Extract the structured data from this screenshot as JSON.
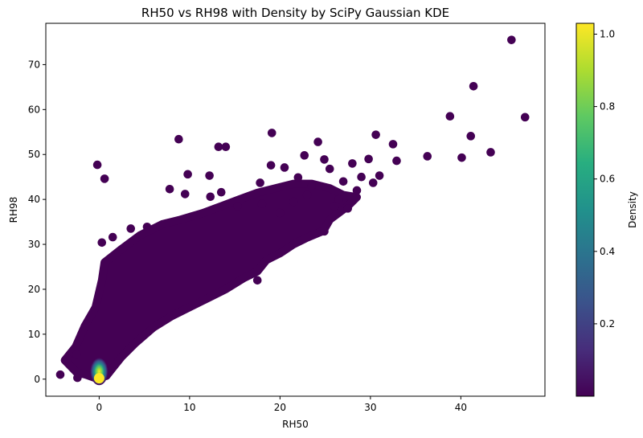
{
  "chart_data": {
    "type": "scatter",
    "title": "RH50 vs RH98 with Density by SciPy Gaussian KDE",
    "xlabel": "RH50",
    "ylabel": "RH98",
    "xlim": [
      -5.9,
      49.3
    ],
    "ylim": [
      -3.8,
      79.2
    ],
    "xticks": [
      0,
      10,
      20,
      30,
      40
    ],
    "yticks": [
      0,
      10,
      20,
      30,
      40,
      50,
      60,
      70
    ],
    "grid": false,
    "colormap": "viridis",
    "colorbar": {
      "label": "Density",
      "range": [
        0.0,
        1.03
      ],
      "ticks": [
        0.2,
        0.4,
        0.6,
        0.8,
        1.0
      ],
      "tick_labels": [
        "0.2",
        "0.4",
        "0.6",
        "0.8",
        "1.0"
      ]
    },
    "points_outliers": [
      [
        45.6,
        75.5
      ],
      [
        41.4,
        65.2
      ],
      [
        47.1,
        58.3
      ],
      [
        38.8,
        58.5
      ],
      [
        41.1,
        54.1
      ],
      [
        43.3,
        50.5
      ],
      [
        40.1,
        49.3
      ],
      [
        36.3,
        49.6
      ],
      [
        32.5,
        52.3
      ],
      [
        30.6,
        54.4
      ],
      [
        32.9,
        48.6
      ],
      [
        29.8,
        49.0
      ],
      [
        31.0,
        45.3
      ],
      [
        30.3,
        43.7
      ],
      [
        28.0,
        48.0
      ],
      [
        29.0,
        45.0
      ],
      [
        28.5,
        42.0
      ],
      [
        27.0,
        44.0
      ],
      [
        26.5,
        40.0
      ],
      [
        27.5,
        38.0
      ],
      [
        26.0,
        38.5
      ],
      [
        24.9,
        32.9
      ],
      [
        24.9,
        48.9
      ],
      [
        22.7,
        49.8
      ],
      [
        24.2,
        52.8
      ],
      [
        19.1,
        54.8
      ],
      [
        20.5,
        47.1
      ],
      [
        19.0,
        47.6
      ],
      [
        17.8,
        43.7
      ],
      [
        15.3,
        38.5
      ],
      [
        12.2,
        45.3
      ],
      [
        9.8,
        45.6
      ],
      [
        13.2,
        51.7
      ],
      [
        14.0,
        51.7
      ],
      [
        8.8,
        53.4
      ],
      [
        -0.2,
        47.7
      ],
      [
        0.6,
        44.6
      ],
      [
        7.8,
        42.3
      ],
      [
        9.5,
        41.2
      ],
      [
        12.3,
        40.6
      ],
      [
        13.5,
        41.6
      ],
      [
        23.5,
        43.0
      ],
      [
        25.5,
        46.8
      ],
      [
        22.0,
        44.9
      ],
      [
        18.0,
        39.0
      ],
      [
        21.5,
        39.5
      ],
      [
        20.0,
        37.0
      ],
      [
        23.0,
        41.0
      ],
      [
        17.5,
        22.0
      ],
      [
        -4.3,
        1.0
      ],
      [
        -3.5,
        4.5
      ],
      [
        -2.5,
        5.5
      ],
      [
        -2.4,
        0.3
      ],
      [
        0.3,
        30.4
      ],
      [
        1.5,
        31.6
      ],
      [
        3.5,
        33.5
      ],
      [
        5.3,
        33.9
      ]
    ],
    "density_peak": {
      "x": 0.0,
      "y": 0.2,
      "value": 1.03
    },
    "cloud_outline": [
      [
        -3.8,
        4.2
      ],
      [
        -2.6,
        7.2
      ],
      [
        -1.6,
        11.8
      ],
      [
        -0.4,
        16.0
      ],
      [
        0.3,
        22.0
      ],
      [
        0.6,
        26.0
      ],
      [
        2.5,
        29.0
      ],
      [
        4.5,
        32.0
      ],
      [
        7.0,
        34.5
      ],
      [
        9.0,
        35.5
      ],
      [
        11.5,
        37.0
      ],
      [
        13.5,
        38.5
      ],
      [
        15.5,
        40.0
      ],
      [
        17.5,
        41.5
      ],
      [
        19.5,
        42.5
      ],
      [
        21.5,
        43.5
      ],
      [
        23.5,
        43.5
      ],
      [
        25.5,
        42.5
      ],
      [
        27.0,
        41.0
      ],
      [
        28.5,
        40.5
      ],
      [
        27.5,
        38.5
      ],
      [
        25.5,
        35.5
      ],
      [
        24.8,
        33.0
      ],
      [
        23.0,
        31.5
      ],
      [
        21.5,
        30.0
      ],
      [
        20.0,
        28.0
      ],
      [
        18.5,
        26.5
      ],
      [
        17.5,
        24.0
      ],
      [
        16.0,
        22.5
      ],
      [
        14.0,
        20.0
      ],
      [
        12.0,
        18.0
      ],
      [
        10.0,
        16.0
      ],
      [
        8.0,
        14.0
      ],
      [
        6.0,
        11.5
      ],
      [
        4.0,
        8.0
      ],
      [
        2.5,
        5.0
      ],
      [
        1.5,
        2.5
      ],
      [
        0.8,
        0.7
      ],
      [
        -0.5,
        0.3
      ],
      [
        -1.5,
        1.0
      ],
      [
        -2.5,
        1.5
      ],
      [
        -3.8,
        4.2
      ]
    ],
    "marker_color": "#440154"
  }
}
